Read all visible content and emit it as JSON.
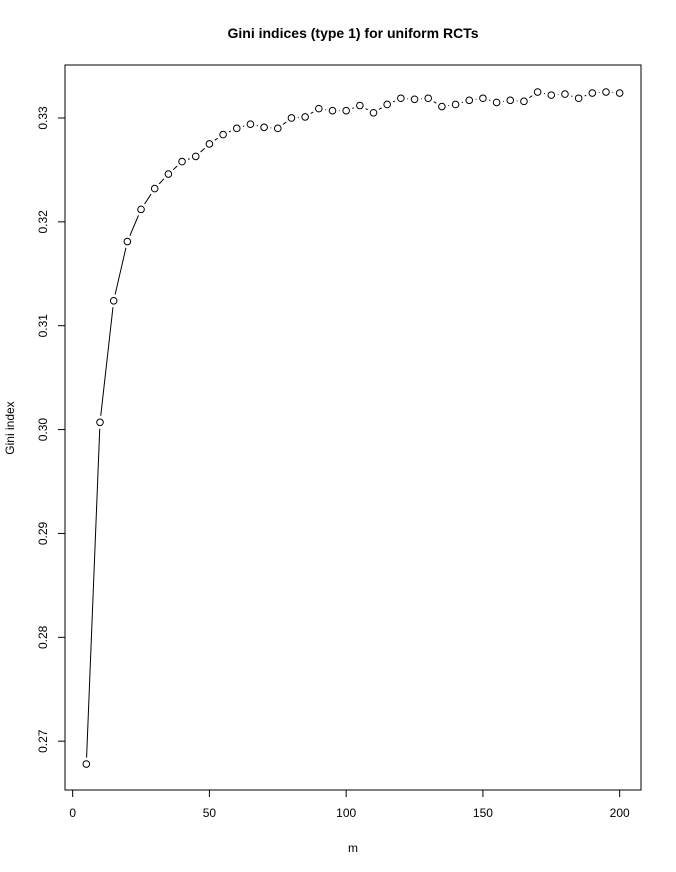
{
  "chart_data": {
    "type": "line",
    "title": "Gini indices (type 1) for uniform RCTs",
    "x_label": "m",
    "y_label": "Gini index",
    "x": [
      5,
      10,
      15,
      20,
      25,
      30,
      35,
      40,
      45,
      50,
      55,
      60,
      65,
      70,
      75,
      80,
      85,
      90,
      95,
      100,
      105,
      110,
      115,
      120,
      125,
      130,
      135,
      140,
      145,
      150,
      155,
      160,
      165,
      170,
      175,
      180,
      185,
      190,
      195,
      200
    ],
    "values": [
      0.2678,
      0.3007,
      0.3124,
      0.3181,
      0.3212,
      0.3232,
      0.3246,
      0.3258,
      0.3263,
      0.3275,
      0.3284,
      0.329,
      0.3294,
      0.3291,
      0.329,
      0.33,
      0.3301,
      0.3309,
      0.3307,
      0.3307,
      0.3312,
      0.3305,
      0.3313,
      0.3319,
      0.3318,
      0.3319,
      0.3311,
      0.3313,
      0.3317,
      0.3319,
      0.3315,
      0.3317,
      0.3316,
      0.3325,
      0.3322,
      0.3323,
      0.3319,
      0.3324,
      0.3325,
      0.3324
    ],
    "color": "#000000",
    "xlim": [
      -2.8,
      207.8
    ],
    "xticks": [
      0,
      50,
      100,
      150,
      200
    ],
    "ylim": [
      0.2653,
      0.3351
    ],
    "yticks": [
      0.27,
      0.28,
      0.29,
      {
        "value": 0.3,
        "label": "0.30"
      },
      0.31,
      0.32,
      0.33
    ]
  }
}
